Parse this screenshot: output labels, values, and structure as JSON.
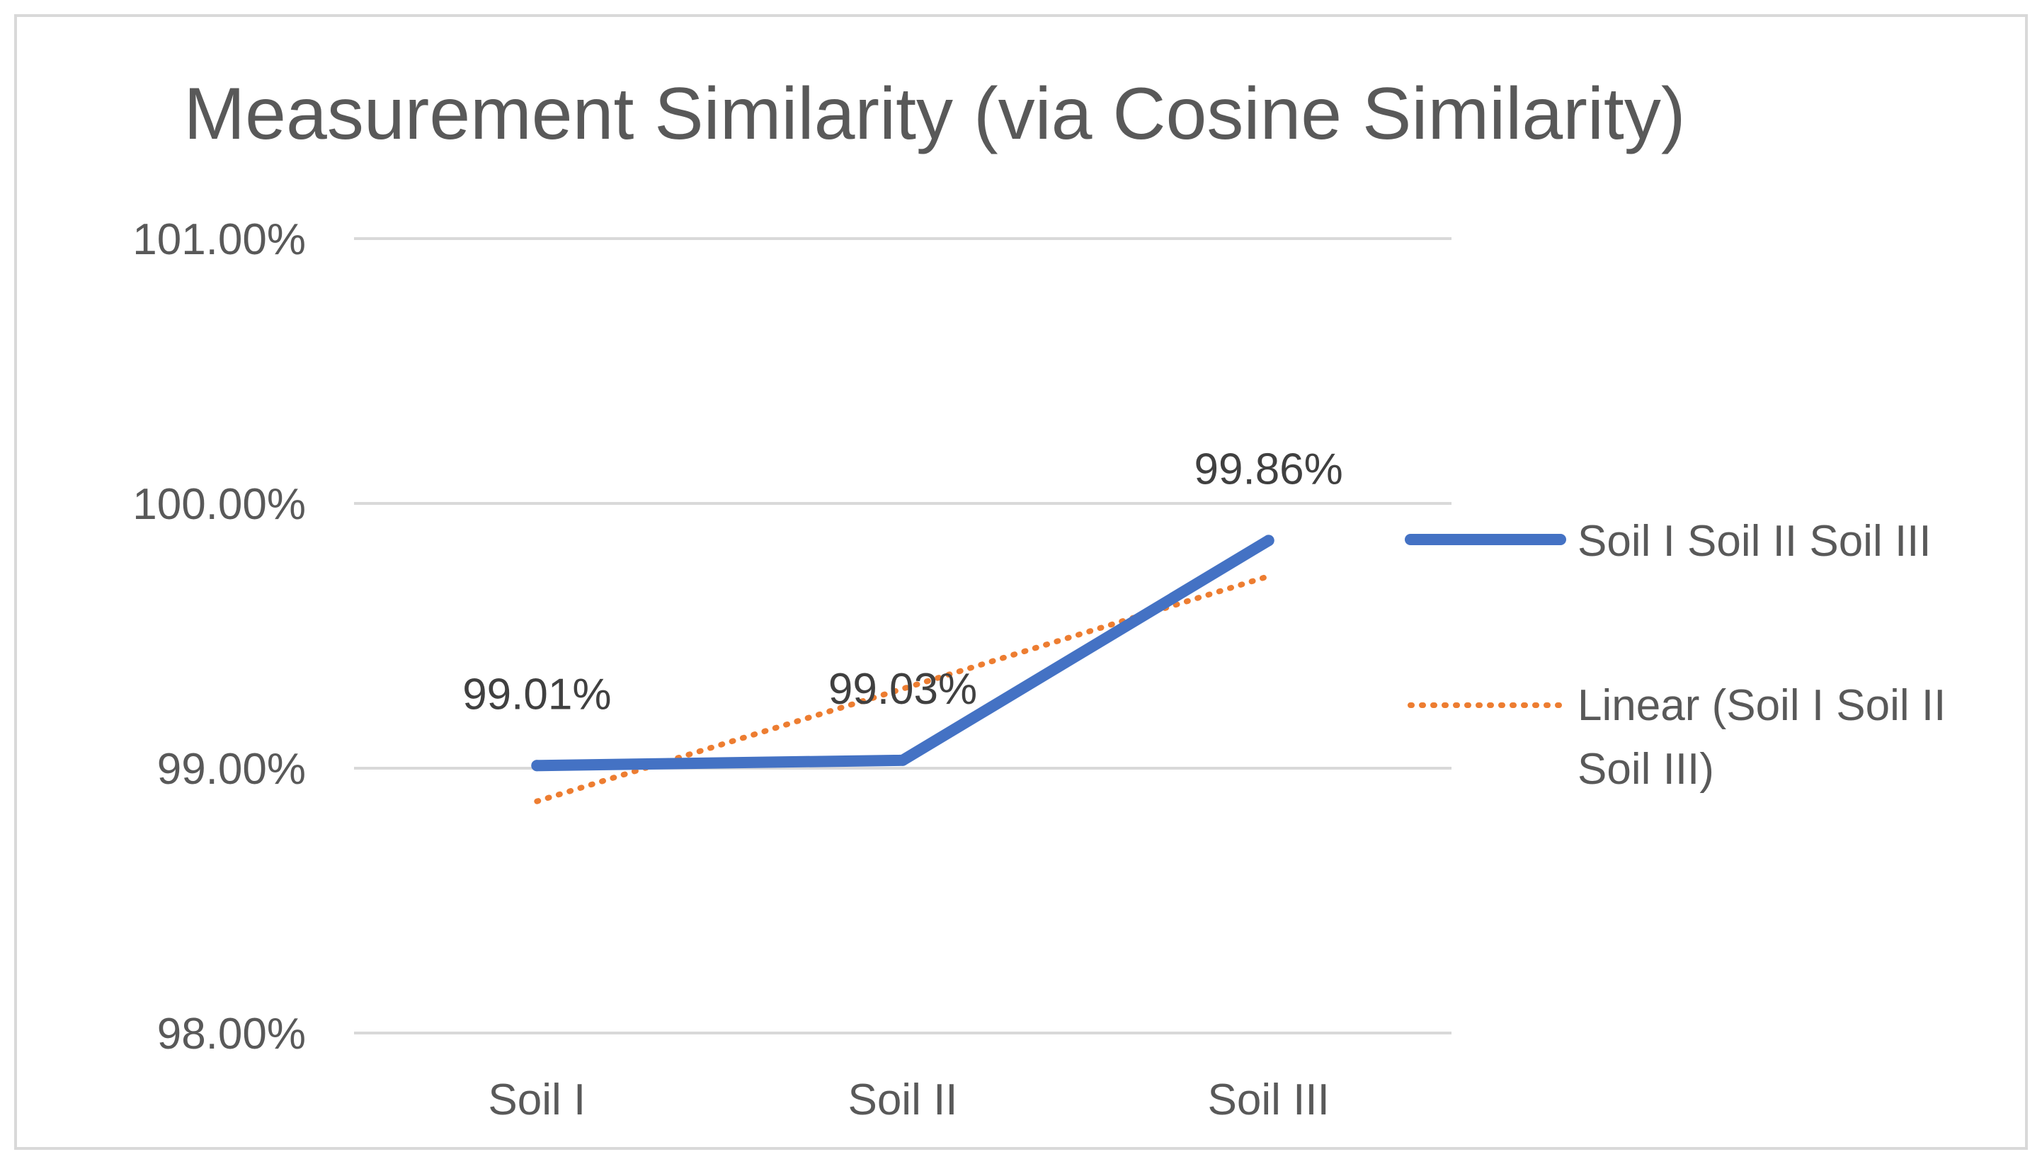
{
  "chart_data": {
    "type": "line",
    "title": "Measurement Similarity (via Cosine Similarity)",
    "xlabel": "",
    "ylabel": "",
    "categories": [
      "Soil I",
      "Soil II",
      "Soil III"
    ],
    "ylim": [
      0.98,
      1.01
    ],
    "yticks": [
      0.98,
      0.99,
      1.0,
      1.01
    ],
    "ytick_labels": [
      "98.00%",
      "99.00%",
      "100.00%",
      "101.00%"
    ],
    "grid": true,
    "legend_position": "right",
    "series": [
      {
        "name": "Soil I Soil II Soil III",
        "values": [
          0.9901,
          0.9903,
          0.9986
        ],
        "data_labels": [
          "99.01%",
          "99.03%",
          "99.86%"
        ],
        "color": "#4472C4"
      }
    ],
    "trendline": {
      "name_lines": [
        "Linear (Soil I Soil II",
        "Soil III)"
      ],
      "type": "linear",
      "color": "#ED7D31"
    }
  }
}
